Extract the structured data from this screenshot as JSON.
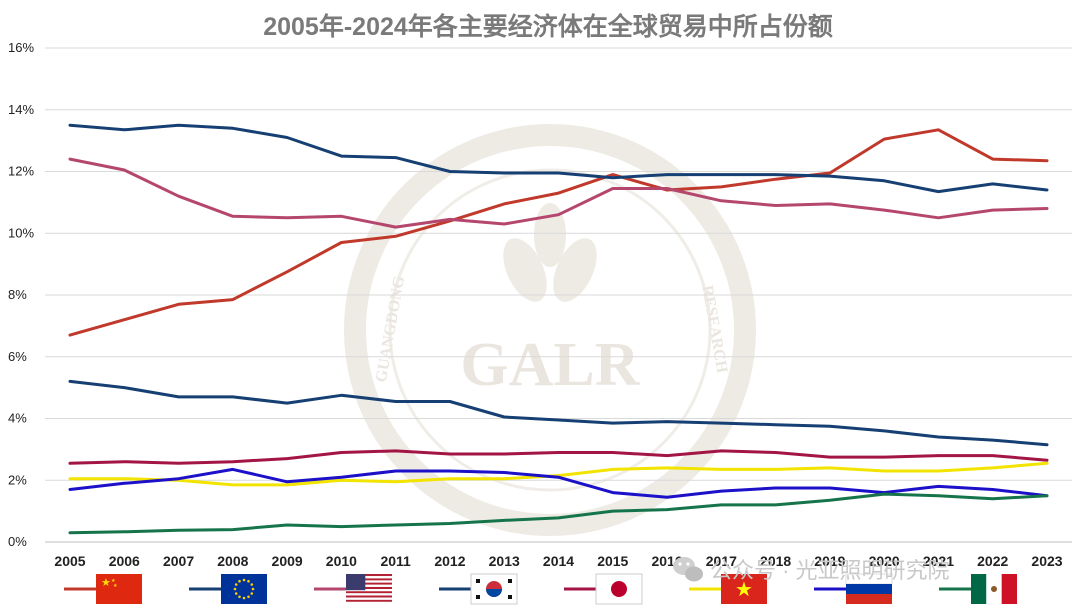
{
  "chart_data": {
    "type": "line",
    "title": "2005年-2024年各主要经济体在全球贸易中所占份额",
    "xlabel": "",
    "ylabel": "",
    "ylim": [
      0,
      16
    ],
    "y_ticks": [
      "0%",
      "2%",
      "4%",
      "6%",
      "8%",
      "10%",
      "12%",
      "14%",
      "16%"
    ],
    "grid": "horizontal",
    "legend_position": "bottom",
    "x": [
      "2005",
      "2006",
      "2007",
      "2008",
      "2009",
      "2010",
      "2011",
      "2012",
      "2013",
      "2014",
      "2015",
      "2016",
      "2017",
      "2018",
      "2019",
      "2020",
      "2021",
      "2022",
      "2023"
    ],
    "series": [
      {
        "legend_flag": "china-flag",
        "color": "#c0392b",
        "values": [
          6.7,
          7.2,
          7.7,
          7.85,
          8.75,
          9.7,
          9.9,
          10.4,
          10.95,
          11.3,
          11.9,
          11.4,
          11.5,
          11.75,
          11.95,
          13.05,
          13.35,
          12.4,
          12.35
        ]
      },
      {
        "legend_flag": "eu-flag",
        "color": "#163f73",
        "values": [
          13.5,
          13.35,
          13.5,
          13.4,
          13.1,
          12.5,
          12.45,
          12.0,
          11.95,
          11.95,
          11.8,
          11.9,
          11.9,
          11.9,
          11.85,
          11.7,
          11.35,
          11.6,
          11.4
        ]
      },
      {
        "legend_flag": "usa-flag",
        "color": "#b5466e",
        "values": [
          12.4,
          12.05,
          11.2,
          10.55,
          10.5,
          10.55,
          10.2,
          10.45,
          10.3,
          10.6,
          11.45,
          11.45,
          11.05,
          10.9,
          10.95,
          10.75,
          10.5,
          10.75,
          10.8
        ]
      },
      {
        "legend_flag": "korea-flag",
        "color": "#163f73",
        "values": [
          5.2,
          5.0,
          4.7,
          4.7,
          4.5,
          4.75,
          4.55,
          4.55,
          4.05,
          3.95,
          3.85,
          3.9,
          3.85,
          3.8,
          3.75,
          3.6,
          3.4,
          3.3,
          3.15
        ]
      },
      {
        "legend_flag": "japan-flag",
        "color": "#a31545",
        "values": [
          2.55,
          2.6,
          2.55,
          2.6,
          2.7,
          2.9,
          2.95,
          2.85,
          2.85,
          2.9,
          2.9,
          2.8,
          2.95,
          2.9,
          2.75,
          2.75,
          2.8,
          2.8,
          2.65
        ]
      },
      {
        "legend_flag": "vietnam-flag",
        "color": "#f2e400",
        "values": [
          2.05,
          2.05,
          2.0,
          1.85,
          1.85,
          2.0,
          1.95,
          2.05,
          2.05,
          2.15,
          2.35,
          2.4,
          2.35,
          2.35,
          2.4,
          2.3,
          2.3,
          2.4,
          2.55
        ]
      },
      {
        "legend_flag": "russia-flag",
        "color": "#1c10c9",
        "values": [
          1.7,
          1.9,
          2.05,
          2.35,
          1.95,
          2.1,
          2.3,
          2.3,
          2.25,
          2.1,
          1.6,
          1.45,
          1.65,
          1.75,
          1.75,
          1.6,
          1.8,
          1.7,
          1.5
        ]
      },
      {
        "legend_flag": "mexico-flag",
        "color": "#16744a",
        "values": [
          0.3,
          0.33,
          0.38,
          0.4,
          0.55,
          0.5,
          0.55,
          0.6,
          0.7,
          0.78,
          1.0,
          1.05,
          1.2,
          1.2,
          1.35,
          1.55,
          1.5,
          1.4,
          1.5
        ]
      }
    ]
  },
  "watermark": {
    "monogram": "GALR",
    "arc_left": "GUANGDONG",
    "arc_right": "RESEARCH",
    "color": "#e8e4dc"
  },
  "credit": {
    "text": "公众号 · 光亚照明研究院",
    "icon": "wechat-icon"
  }
}
